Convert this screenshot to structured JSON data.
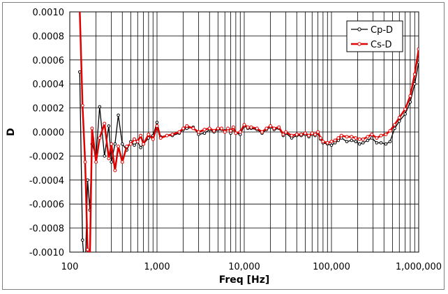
{
  "chart_data": {
    "type": "line",
    "title": "",
    "xlabel": "Freq [Hz]",
    "ylabel": "D",
    "x_scale": "log",
    "xlim": [
      100,
      1000000
    ],
    "ylim": [
      -0.001,
      0.001
    ],
    "grid": true,
    "legend_position": "top-right",
    "x_ticks": [
      100,
      1000,
      10000,
      100000,
      1000000
    ],
    "x_tick_labels": [
      "100",
      "1,000",
      "10,000",
      "100,000",
      "1,000,000"
    ],
    "y_ticks": [
      -0.001,
      -0.0008,
      -0.0006,
      -0.0004,
      -0.0002,
      0,
      0.0002,
      0.0004,
      0.0006,
      0.0008,
      0.001
    ],
    "y_tick_labels": [
      "-0.0010",
      "-0.0008",
      "-0.0006",
      "-0.0004",
      "-0.0002",
      "0.0000",
      "0.0002",
      "0.0004",
      "0.0006",
      "0.0008",
      "0.0010"
    ],
    "series": [
      {
        "name": "Cp-D",
        "color": "#000000",
        "x": [
          130,
          140,
          150,
          160,
          170,
          180,
          200,
          220,
          250,
          280,
          300,
          330,
          360,
          400,
          450,
          500,
          550,
          600,
          650,
          700,
          800,
          900,
          1000,
          1100,
          1300,
          1500,
          1800,
          2000,
          2200,
          2600,
          3000,
          3500,
          4000,
          4500,
          5000,
          5500,
          6000,
          6500,
          7000,
          7500,
          8000,
          9000,
          10000,
          11000,
          12000,
          14000,
          16000,
          18000,
          20000,
          22000,
          25000,
          28000,
          30000,
          35000,
          40000,
          45000,
          50000,
          55000,
          60000,
          65000,
          70000,
          75000,
          80000,
          90000,
          100000,
          110000,
          120000,
          130000,
          150000,
          170000,
          190000,
          210000,
          230000,
          260000,
          290000,
          330000,
          370000,
          420000,
          470000,
          530000,
          600000,
          700000,
          800000,
          900000,
          1000000
        ],
        "y": [
          0.0005,
          -0.0009,
          -0.0012,
          -0.0004,
          -0.00065,
          -0.0001,
          -0.0002,
          0.00021,
          -0.0002,
          5e-05,
          -0.00025,
          -0.0001,
          0.00014,
          -0.0001,
          -0.00015,
          -8e-05,
          -0.00011,
          -8e-05,
          -0.00013,
          -0.0001,
          -5e-05,
          -3e-05,
          8e-05,
          -4e-05,
          -3e-05,
          -3e-05,
          -1e-05,
          2e-05,
          3e-05,
          4e-05,
          -2e-05,
          -1e-05,
          2e-05,
          0.0,
          2e-05,
          2e-05,
          1e-05,
          3e-05,
          -1e-05,
          2e-05,
          -1e-05,
          -2e-05,
          5e-05,
          3e-05,
          3e-05,
          2e-05,
          -1e-05,
          2e-05,
          4e-05,
          2e-05,
          3e-05,
          -3e-05,
          -1e-05,
          -5e-05,
          -3e-05,
          -3e-05,
          -2e-05,
          -4e-05,
          -2e-05,
          -3e-05,
          -1e-05,
          -6e-05,
          -9e-05,
          -0.0001,
          -0.00011,
          -9e-05,
          -7e-05,
          -5e-05,
          -8e-05,
          -7e-05,
          -8e-05,
          -0.0001,
          -9e-05,
          -7e-05,
          -5e-05,
          -9e-05,
          -9e-05,
          -0.0001,
          -8e-05,
          3e-05,
          9e-05,
          0.00015,
          0.00025,
          0.0004,
          0.00058
        ]
      },
      {
        "name": "Cs-D",
        "color": "#e00000",
        "x": [
          130,
          140,
          150,
          160,
          170,
          180,
          200,
          220,
          250,
          280,
          300,
          330,
          360,
          400,
          450,
          500,
          550,
          600,
          650,
          700,
          800,
          900,
          1000,
          1100,
          1300,
          1500,
          1800,
          2000,
          2200,
          2600,
          3000,
          3500,
          4000,
          4500,
          5000,
          5500,
          6000,
          6500,
          7000,
          7500,
          8000,
          9000,
          10000,
          11000,
          12000,
          14000,
          16000,
          18000,
          20000,
          22000,
          25000,
          28000,
          30000,
          35000,
          40000,
          45000,
          50000,
          55000,
          60000,
          65000,
          70000,
          75000,
          80000,
          90000,
          100000,
          110000,
          120000,
          130000,
          150000,
          170000,
          190000,
          210000,
          230000,
          260000,
          290000,
          330000,
          370000,
          420000,
          470000,
          530000,
          600000,
          700000,
          800000,
          900000,
          1000000
        ],
        "y": [
          0.00102,
          0.00022,
          -0.00025,
          -0.00098,
          -0.00105,
          3e-05,
          -0.00025,
          -5e-05,
          7e-05,
          -0.00022,
          -0.0001,
          -0.00032,
          -0.00012,
          -0.00025,
          -0.00012,
          -0.0001,
          -6e-05,
          -8e-05,
          -3e-05,
          -0.0001,
          -2e-05,
          -6e-05,
          5e-05,
          -5e-05,
          -3e-05,
          -2e-05,
          0.0,
          3e-05,
          5e-05,
          3e-05,
          0.0,
          2e-05,
          3e-05,
          1e-05,
          3e-05,
          3e-05,
          0.0,
          3e-05,
          1e-05,
          4e-05,
          -1e-05,
          0.0,
          6e-05,
          4e-05,
          4e-05,
          3e-05,
          0.0,
          3e-05,
          5e-05,
          3e-05,
          4e-05,
          -2e-05,
          0.0,
          -3e-05,
          -2e-05,
          -2e-05,
          -1e-05,
          -3e-05,
          -1e-05,
          -2e-05,
          0.0,
          -5e-05,
          -8e-05,
          -9e-05,
          -8e-05,
          -7e-05,
          -5e-05,
          -3e-05,
          -4e-05,
          -4e-05,
          -5e-05,
          -6e-05,
          -6e-05,
          -4e-05,
          -2e-05,
          -5e-05,
          -3e-05,
          -2e-05,
          1e-05,
          6e-05,
          0.00012,
          0.00019,
          0.0003,
          0.00048,
          0.00069
        ]
      }
    ]
  }
}
